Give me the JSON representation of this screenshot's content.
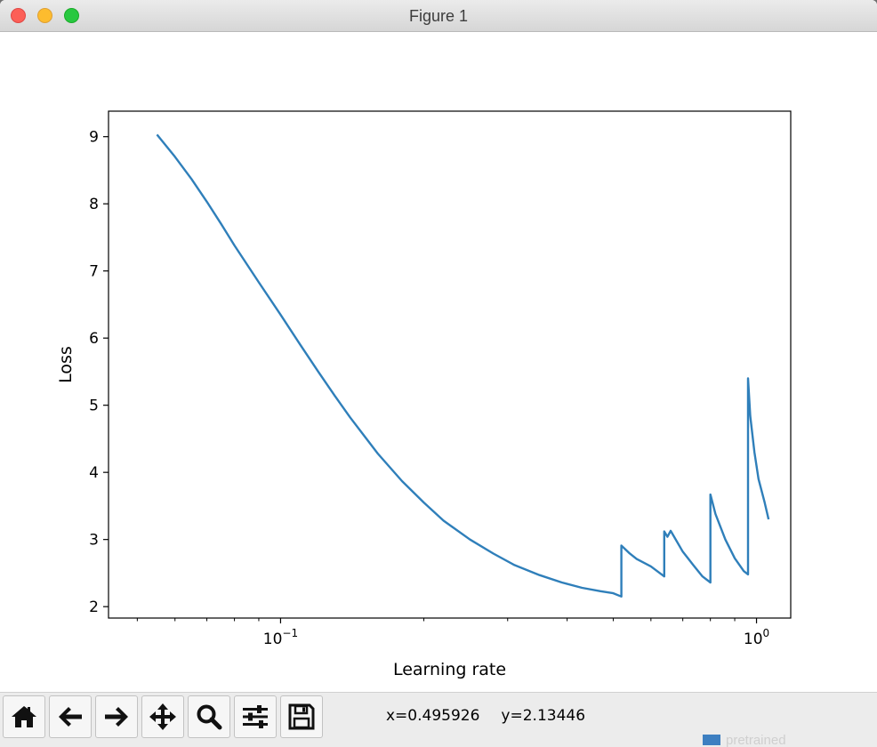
{
  "window": {
    "title": "Figure 1"
  },
  "toolbar": {
    "buttons": [
      {
        "name": "home-button",
        "icon": "home-icon"
      },
      {
        "name": "back-button",
        "icon": "arrow-left-icon"
      },
      {
        "name": "forward-button",
        "icon": "arrow-right-icon"
      },
      {
        "name": "pan-button",
        "icon": "move-icon"
      },
      {
        "name": "zoom-button",
        "icon": "magnifier-icon"
      },
      {
        "name": "configure-subplots-button",
        "icon": "sliders-icon"
      },
      {
        "name": "save-button",
        "icon": "floppy-disk-icon"
      }
    ],
    "coord_x": "x=0.495926",
    "coord_y": "y=2.13446"
  },
  "desktop": {
    "folder_label": "pretrained"
  },
  "chart_data": {
    "type": "line",
    "title": "",
    "xlabel": "Learning rate",
    "ylabel": "Loss",
    "xscale": "log",
    "xlim": [
      0.0435,
      1.18
    ],
    "ylim": [
      1.83,
      9.38
    ],
    "xticks": [
      {
        "value": 0.1,
        "label": "10^-1"
      },
      {
        "value": 1.0,
        "label": "10^0"
      }
    ],
    "yticks": [
      2,
      3,
      4,
      5,
      6,
      7,
      8,
      9
    ],
    "grid": false,
    "line_color": "#2f7fba",
    "series": [
      {
        "x": [
          0.055,
          0.06,
          0.065,
          0.07,
          0.075,
          0.08,
          0.09,
          0.1,
          0.11,
          0.12,
          0.13,
          0.14,
          0.15,
          0.16,
          0.18,
          0.2,
          0.22,
          0.25,
          0.28,
          0.31,
          0.35,
          0.39,
          0.43,
          0.47,
          0.5,
          0.52,
          0.52,
          0.54,
          0.56,
          0.6,
          0.64,
          0.64,
          0.65,
          0.66,
          0.67,
          0.7,
          0.74,
          0.77,
          0.8,
          0.8,
          0.82,
          0.86,
          0.9,
          0.94,
          0.96,
          0.96,
          0.97,
          0.99,
          1.01,
          1.04,
          1.06
        ],
        "y": [
          9.03,
          8.7,
          8.37,
          8.03,
          7.7,
          7.38,
          6.83,
          6.35,
          5.9,
          5.5,
          5.14,
          4.82,
          4.54,
          4.28,
          3.87,
          3.55,
          3.28,
          3.0,
          2.79,
          2.62,
          2.47,
          2.36,
          2.28,
          2.23,
          2.2,
          2.15,
          2.91,
          2.8,
          2.71,
          2.6,
          2.45,
          3.12,
          3.04,
          3.13,
          3.05,
          2.82,
          2.6,
          2.45,
          2.36,
          3.67,
          3.38,
          3.0,
          2.72,
          2.53,
          2.48,
          5.4,
          4.84,
          4.3,
          3.9,
          3.55,
          3.3
        ]
      }
    ]
  }
}
